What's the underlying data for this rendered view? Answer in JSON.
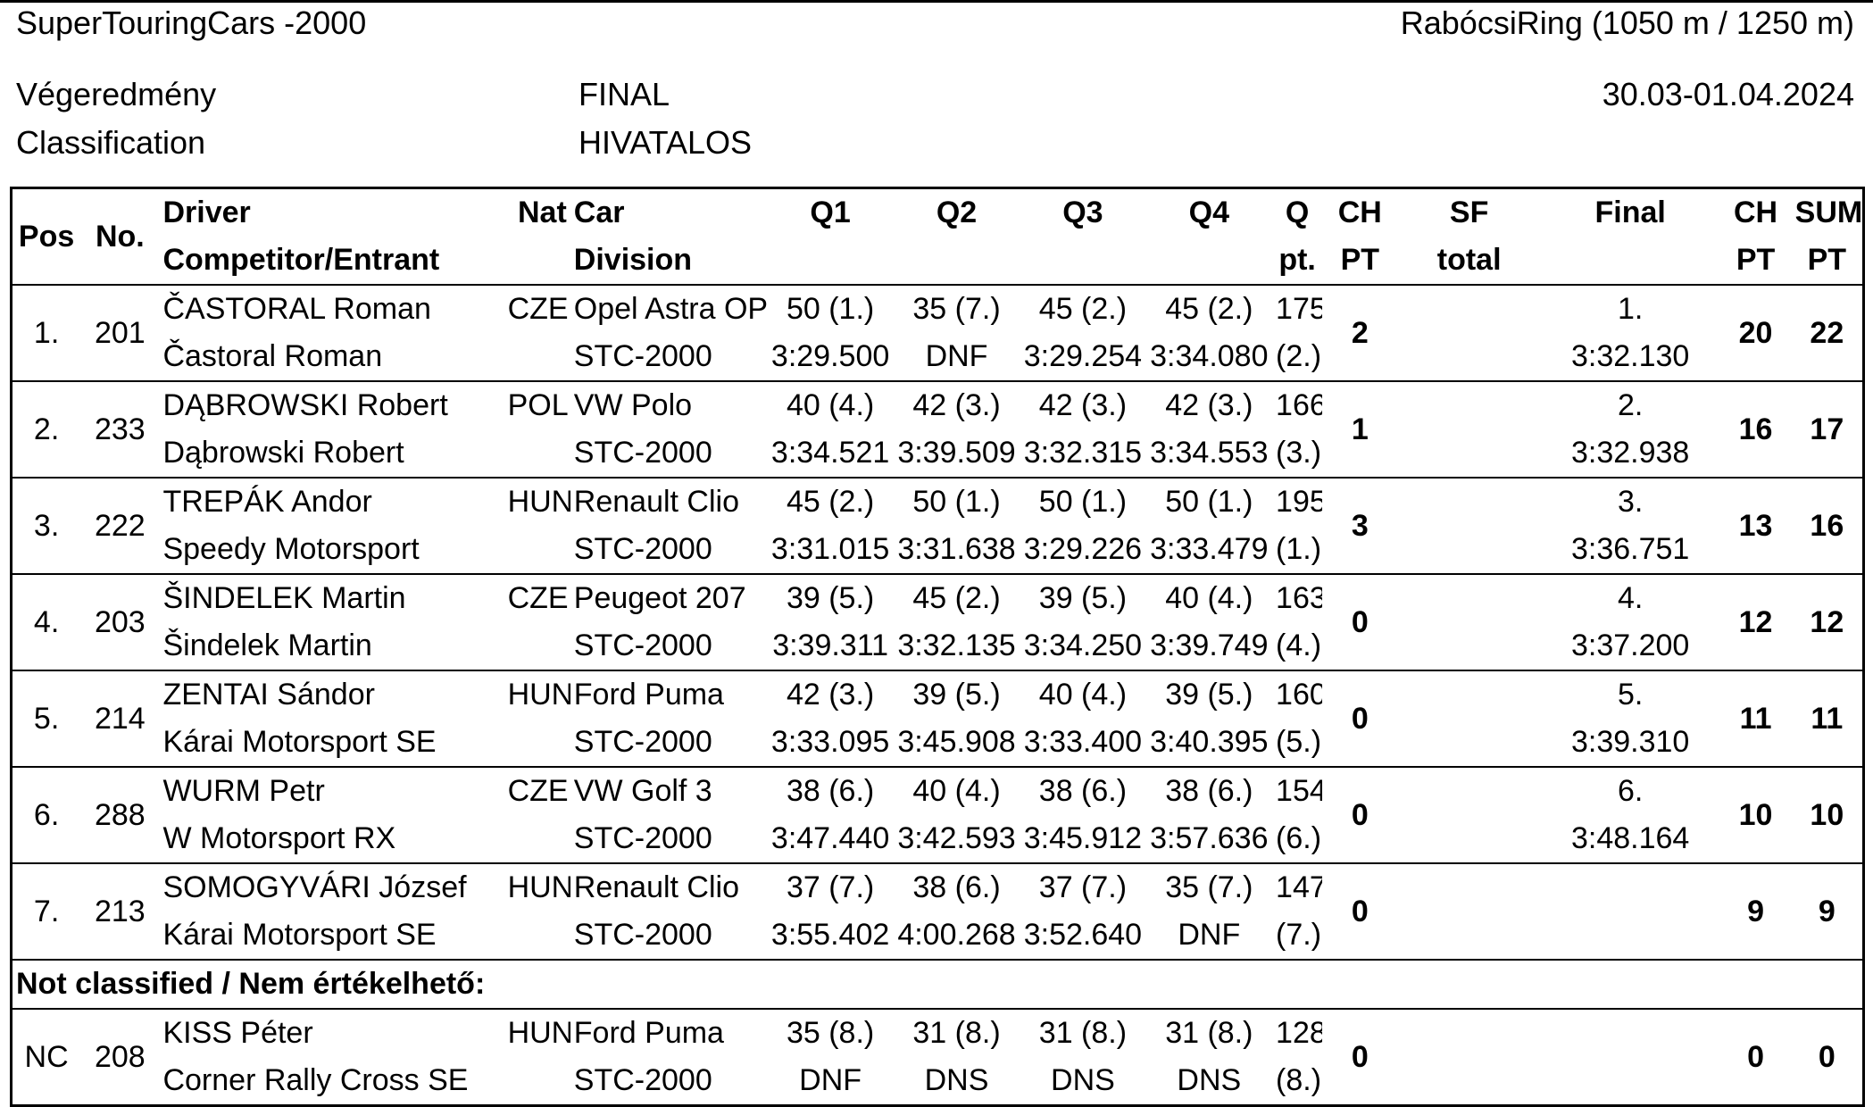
{
  "header": {
    "series": "SuperTouringCars -2000",
    "track": "RabócsiRing (1050 m / 1250 m)",
    "title_hu": "Végeredmény",
    "title_en": "Classification",
    "status1": "FINAL",
    "status2": "HIVATALOS",
    "dates": "30.03-01.04.2024"
  },
  "columns": {
    "pos": "Pos",
    "no": "No.",
    "driver": "Driver",
    "entrant": "Competitor/Entrant",
    "nat": "Nat",
    "car": "Car",
    "division": "Division",
    "q1": "Q1",
    "q2": "Q2",
    "q3": "Q3",
    "q4": "Q4",
    "qpt1": "Q",
    "qpt2": "pt.",
    "chpt1a": "CH",
    "chpt1b": "PT",
    "sf1": "SF",
    "sf2": "total",
    "final": "Final",
    "chpt2a": "CH",
    "chpt2b": "PT",
    "sum1": "SUM",
    "sum2": "PT"
  },
  "rows": [
    {
      "pos": "1.",
      "no": "201",
      "driver": "ČASTORAL Roman",
      "entrant": "Častoral Roman",
      "nat": "CZE",
      "car": "Opel Astra OPC",
      "division": "STC-2000",
      "q1": "50 (1.)",
      "q1t": "3:29.500",
      "q2": "35 (7.)",
      "q2t": "DNF",
      "q3": "45 (2.)",
      "q3t": "3:29.254",
      "q4": "45 (2.)",
      "q4t": "3:34.080",
      "qpt": "175",
      "qrank": "(2.)",
      "chpt": "2",
      "sf": "",
      "final_pos": "1.",
      "final_time": "3:32.130",
      "chpt2": "20",
      "sum": "22"
    },
    {
      "pos": "2.",
      "no": "233",
      "driver": "DĄBROWSKI Robert",
      "entrant": "Dąbrowski Robert",
      "nat": "POL",
      "car": "VW Polo",
      "division": "STC-2000",
      "q1": "40 (4.)",
      "q1t": "3:34.521",
      "q2": "42 (3.)",
      "q2t": "3:39.509",
      "q3": "42 (3.)",
      "q3t": "3:32.315",
      "q4": "42 (3.)",
      "q4t": "3:34.553",
      "qpt": "166",
      "qrank": "(3.)",
      "chpt": "1",
      "sf": "",
      "final_pos": "2.",
      "final_time": "3:32.938",
      "chpt2": "16",
      "sum": "17"
    },
    {
      "pos": "3.",
      "no": "222",
      "driver": "TREPÁK Andor",
      "entrant": "Speedy Motorsport",
      "nat": "HUN",
      "car": "Renault Clio",
      "division": "STC-2000",
      "q1": "45 (2.)",
      "q1t": "3:31.015",
      "q2": "50 (1.)",
      "q2t": "3:31.638",
      "q3": "50 (1.)",
      "q3t": "3:29.226",
      "q4": "50 (1.)",
      "q4t": "3:33.479",
      "qpt": "195",
      "qrank": "(1.)",
      "chpt": "3",
      "sf": "",
      "final_pos": "3.",
      "final_time": "3:36.751",
      "chpt2": "13",
      "sum": "16"
    },
    {
      "pos": "4.",
      "no": "203",
      "driver": "ŠINDELEK Martin",
      "entrant": "Šindelek Martin",
      "nat": "CZE",
      "car": "Peugeot 207",
      "division": "STC-2000",
      "q1": "39 (5.)",
      "q1t": "3:39.311",
      "q2": "45 (2.)",
      "q2t": "3:32.135",
      "q3": "39 (5.)",
      "q3t": "3:34.250",
      "q4": "40 (4.)",
      "q4t": "3:39.749",
      "qpt": "163",
      "qrank": "(4.)",
      "chpt": "0",
      "sf": "",
      "final_pos": "4.",
      "final_time": "3:37.200",
      "chpt2": "12",
      "sum": "12"
    },
    {
      "pos": "5.",
      "no": "214",
      "driver": "ZENTAI Sándor",
      "entrant": "Kárai Motorsport SE",
      "nat": "HUN",
      "car": "Ford Puma",
      "division": "STC-2000",
      "q1": "42 (3.)",
      "q1t": "3:33.095",
      "q2": "39 (5.)",
      "q2t": "3:45.908",
      "q3": "40 (4.)",
      "q3t": "3:33.400",
      "q4": "39 (5.)",
      "q4t": "3:40.395",
      "qpt": "160",
      "qrank": "(5.)",
      "chpt": "0",
      "sf": "",
      "final_pos": "5.",
      "final_time": "3:39.310",
      "chpt2": "11",
      "sum": "11"
    },
    {
      "pos": "6.",
      "no": "288",
      "driver": "WURM Petr",
      "entrant": "W Motorsport RX",
      "nat": "CZE",
      "car": "VW Golf 3",
      "division": "STC-2000",
      "q1": "38 (6.)",
      "q1t": "3:47.440",
      "q2": "40 (4.)",
      "q2t": "3:42.593",
      "q3": "38 (6.)",
      "q3t": "3:45.912",
      "q4": "38 (6.)",
      "q4t": "3:57.636",
      "qpt": "154",
      "qrank": "(6.)",
      "chpt": "0",
      "sf": "",
      "final_pos": "6.",
      "final_time": "3:48.164",
      "chpt2": "10",
      "sum": "10"
    },
    {
      "pos": "7.",
      "no": "213",
      "driver": "SOMOGYVÁRI József",
      "entrant": "Kárai Motorsport SE",
      "nat": "HUN",
      "car": "Renault Clio",
      "division": "STC-2000",
      "q1": "37 (7.)",
      "q1t": "3:55.402",
      "q2": "38 (6.)",
      "q2t": "4:00.268",
      "q3": "37 (7.)",
      "q3t": "3:52.640",
      "q4": "35 (7.)",
      "q4t": "DNF",
      "qpt": "147",
      "qrank": "(7.)",
      "chpt": "0",
      "sf": "",
      "final_pos": "",
      "final_time": "",
      "chpt2": "9",
      "sum": "9"
    }
  ],
  "nc_label": "Not classified / Nem értékelhető:",
  "nc_rows": [
    {
      "pos": "NC",
      "no": "208",
      "driver": "KISS Péter",
      "entrant": "Corner Rally Cross SE",
      "nat": "HUN",
      "car": "Ford Puma",
      "division": "STC-2000",
      "q1": "35 (8.)",
      "q1t": "DNF",
      "q2": "31 (8.)",
      "q2t": "DNS",
      "q3": "31 (8.)",
      "q3t": "DNS",
      "q4": "31 (8.)",
      "q4t": "DNS",
      "qpt": "128",
      "qrank": "(8.)",
      "chpt": "0",
      "sf": "",
      "final_pos": "",
      "final_time": "",
      "chpt2": "0",
      "sum": "0"
    }
  ]
}
